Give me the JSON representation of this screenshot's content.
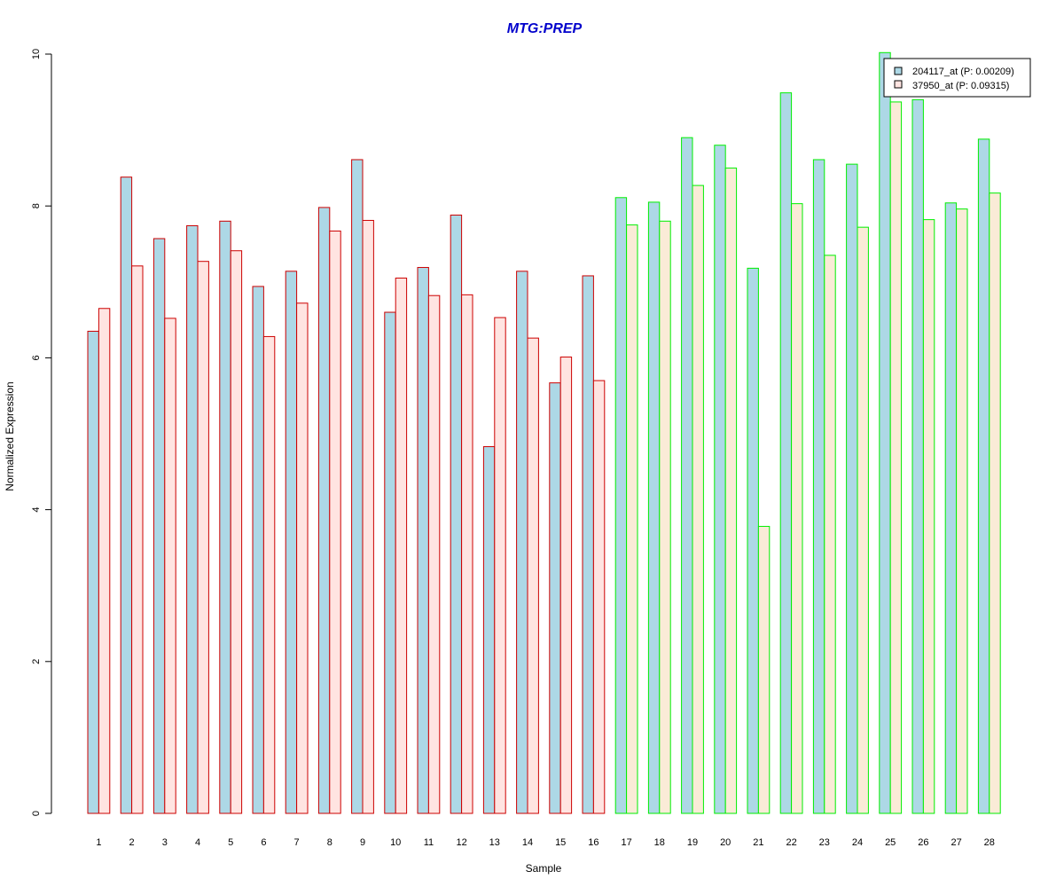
{
  "chart_data": {
    "type": "bar",
    "title": "MTG:PREP",
    "xlabel": "Sample",
    "ylabel": "Normalized Expression",
    "ylim": [
      0,
      10
    ],
    "yticks": [
      "0",
      "2",
      "4",
      "6",
      "8",
      "10"
    ],
    "grid": false,
    "legend_position": "top-right",
    "categories": [
      "1",
      "2",
      "3",
      "4",
      "5",
      "6",
      "7",
      "8",
      "9",
      "10",
      "11",
      "12",
      "13",
      "14",
      "15",
      "16",
      "17",
      "18",
      "19",
      "20",
      "21",
      "22",
      "23",
      "24",
      "25",
      "26",
      "27",
      "28"
    ],
    "series": [
      {
        "name": "204117_at (P: 0.00209)",
        "values": [
          6.35,
          8.38,
          7.57,
          7.74,
          7.8,
          6.94,
          7.14,
          7.98,
          8.61,
          6.6,
          7.19,
          7.88,
          4.83,
          7.14,
          5.67,
          7.08,
          8.11,
          8.05,
          8.9,
          8.8,
          7.18,
          9.49,
          8.61,
          8.55,
          10.02,
          9.4,
          8.04,
          8.88
        ]
      },
      {
        "name": "37950_at (P: 0.09315)",
        "values": [
          6.65,
          7.21,
          6.52,
          7.27,
          7.41,
          6.28,
          6.72,
          7.67,
          7.81,
          7.05,
          6.82,
          6.83,
          6.53,
          6.26,
          6.01,
          5.7,
          7.75,
          7.8,
          8.27,
          8.5,
          3.78,
          8.03,
          7.35,
          7.72,
          9.37,
          7.82,
          7.96,
          8.17
        ]
      }
    ],
    "group_count_first": 16,
    "colors": {
      "title": "#0000cc",
      "series1_fill": "#add8e6",
      "series2_fill_group1": "#ffe4e1",
      "series2_fill_group2": "#faebd7",
      "outline_group1": "#cc0000",
      "outline_group2": "#00ee00"
    }
  }
}
